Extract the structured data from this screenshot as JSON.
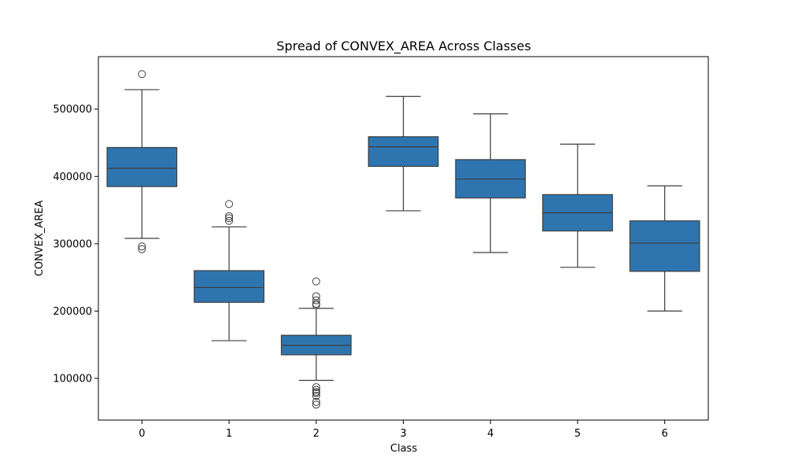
{
  "chart_data": {
    "type": "box",
    "title": "Spread of CONVEX_AREA Across Classes",
    "xlabel": "Class",
    "ylabel": "CONVEX_AREA",
    "categories": [
      "0",
      "1",
      "2",
      "3",
      "4",
      "5",
      "6"
    ],
    "ylim": [
      38000,
      578000
    ],
    "yticks": [
      100000,
      200000,
      300000,
      400000,
      500000
    ],
    "ytick_labels": [
      "100000",
      "200000",
      "300000",
      "400000",
      "500000"
    ],
    "grid": false,
    "legend": "none",
    "box_color": "#2e75b0",
    "line_color": "#3d3d3d",
    "boxes": [
      {
        "category": "0",
        "whisker_low": 308000,
        "q1": 385000,
        "median": 412000,
        "q3": 443000,
        "whisker_high": 529000,
        "outliers": [
          552000,
          296000,
          292000
        ]
      },
      {
        "category": "1",
        "whisker_low": 156000,
        "q1": 213000,
        "median": 235000,
        "q3": 260000,
        "whisker_high": 325000,
        "outliers": [
          359000,
          341000,
          338000,
          334000
        ]
      },
      {
        "category": "2",
        "whisker_low": 97000,
        "q1": 135000,
        "median": 149000,
        "q3": 164000,
        "whisker_high": 204000,
        "outliers": [
          244000,
          222000,
          216000,
          211000,
          209000,
          87000,
          83000,
          80000,
          78000,
          74000,
          65000,
          61000
        ]
      },
      {
        "category": "3",
        "whisker_low": 349000,
        "q1": 415000,
        "median": 444000,
        "q3": 459000,
        "whisker_high": 519000,
        "outliers": []
      },
      {
        "category": "4",
        "whisker_low": 287000,
        "q1": 368000,
        "median": 396000,
        "q3": 425000,
        "whisker_high": 493000,
        "outliers": []
      },
      {
        "category": "5",
        "whisker_low": 265000,
        "q1": 319000,
        "median": 346000,
        "q3": 373000,
        "whisker_high": 448000,
        "outliers": []
      },
      {
        "category": "6",
        "whisker_low": 200000,
        "q1": 259000,
        "median": 301000,
        "q3": 334000,
        "whisker_high": 386000,
        "outliers": []
      }
    ]
  }
}
